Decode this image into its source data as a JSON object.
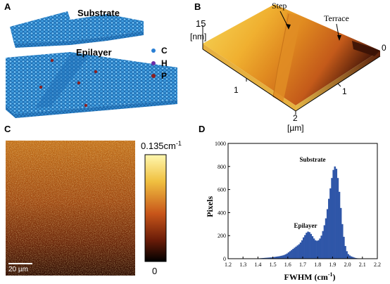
{
  "panels": {
    "a": {
      "label": "A",
      "substrate_label": "Substrate",
      "epilayer_label": "Epilayer",
      "legend": [
        {
          "symbol": "C",
          "color": "#2a7fd4"
        },
        {
          "symbol": "H",
          "color": "#6a2fa8"
        },
        {
          "symbol": "P",
          "color": "#8b2020"
        }
      ]
    },
    "b": {
      "label": "B",
      "step_label": "Step",
      "terrace_label": "Terrace",
      "z_max": "15",
      "z_unit": "[nm]",
      "x_ticks": [
        "1",
        "2"
      ],
      "y_ticks": [
        "0",
        "1"
      ],
      "xy_unit": "[µm]"
    },
    "c": {
      "label": "C",
      "colorbar_max": "0.135cm",
      "colorbar_max_sup": "-1",
      "colorbar_min": "0",
      "scale_bar": "20 µm"
    },
    "d": {
      "label": "D",
      "substrate_label": "Substrate",
      "epilayer_label": "Epilayer"
    }
  },
  "chart_data": {
    "type": "bar",
    "title": "",
    "xlabel": "FWHM (cm",
    "xlabel_sup": "-1",
    "xlabel_end": ")",
    "ylabel": "Pixels",
    "xlim": [
      1.2,
      2.2
    ],
    "ylim": [
      0,
      1000
    ],
    "x_ticks": [
      "1.2",
      "1.3",
      "1.4",
      "1.5",
      "1.6",
      "1.7",
      "1.8",
      "1.9",
      "2.0",
      "2.1",
      "2.2"
    ],
    "y_ticks": [
      "0",
      "200",
      "400",
      "600",
      "800",
      "1000"
    ],
    "bar_color": "#2f56a8",
    "bin_width": 0.01,
    "bins": [
      {
        "x": 1.4,
        "y": 2
      },
      {
        "x": 1.41,
        "y": 4
      },
      {
        "x": 1.42,
        "y": 5
      },
      {
        "x": 1.43,
        "y": 6
      },
      {
        "x": 1.44,
        "y": 7
      },
      {
        "x": 1.45,
        "y": 8
      },
      {
        "x": 1.46,
        "y": 9
      },
      {
        "x": 1.47,
        "y": 10
      },
      {
        "x": 1.48,
        "y": 11
      },
      {
        "x": 1.49,
        "y": 12
      },
      {
        "x": 1.5,
        "y": 14
      },
      {
        "x": 1.51,
        "y": 16
      },
      {
        "x": 1.52,
        "y": 18
      },
      {
        "x": 1.53,
        "y": 20
      },
      {
        "x": 1.54,
        "y": 22
      },
      {
        "x": 1.55,
        "y": 25
      },
      {
        "x": 1.56,
        "y": 28
      },
      {
        "x": 1.57,
        "y": 32
      },
      {
        "x": 1.58,
        "y": 38
      },
      {
        "x": 1.59,
        "y": 45
      },
      {
        "x": 1.6,
        "y": 55
      },
      {
        "x": 1.61,
        "y": 65
      },
      {
        "x": 1.62,
        "y": 75
      },
      {
        "x": 1.63,
        "y": 85
      },
      {
        "x": 1.64,
        "y": 95
      },
      {
        "x": 1.65,
        "y": 105
      },
      {
        "x": 1.66,
        "y": 115
      },
      {
        "x": 1.67,
        "y": 125
      },
      {
        "x": 1.68,
        "y": 140
      },
      {
        "x": 1.69,
        "y": 160
      },
      {
        "x": 1.7,
        "y": 185
      },
      {
        "x": 1.71,
        "y": 205
      },
      {
        "x": 1.72,
        "y": 225
      },
      {
        "x": 1.73,
        "y": 235
      },
      {
        "x": 1.74,
        "y": 230
      },
      {
        "x": 1.75,
        "y": 215
      },
      {
        "x": 1.76,
        "y": 195
      },
      {
        "x": 1.77,
        "y": 175
      },
      {
        "x": 1.78,
        "y": 160
      },
      {
        "x": 1.79,
        "y": 155
      },
      {
        "x": 1.8,
        "y": 160
      },
      {
        "x": 1.81,
        "y": 175
      },
      {
        "x": 1.82,
        "y": 200
      },
      {
        "x": 1.83,
        "y": 240
      },
      {
        "x": 1.84,
        "y": 290
      },
      {
        "x": 1.85,
        "y": 350
      },
      {
        "x": 1.86,
        "y": 430
      },
      {
        "x": 1.87,
        "y": 520
      },
      {
        "x": 1.88,
        "y": 610
      },
      {
        "x": 1.89,
        "y": 700
      },
      {
        "x": 1.9,
        "y": 770
      },
      {
        "x": 1.91,
        "y": 800
      },
      {
        "x": 1.92,
        "y": 780
      },
      {
        "x": 1.93,
        "y": 700
      },
      {
        "x": 1.94,
        "y": 580
      },
      {
        "x": 1.95,
        "y": 440
      },
      {
        "x": 1.96,
        "y": 300
      },
      {
        "x": 1.97,
        "y": 190
      },
      {
        "x": 1.98,
        "y": 110
      },
      {
        "x": 1.99,
        "y": 65
      },
      {
        "x": 2.0,
        "y": 40
      },
      {
        "x": 2.01,
        "y": 28
      },
      {
        "x": 2.02,
        "y": 20
      },
      {
        "x": 2.03,
        "y": 15
      },
      {
        "x": 2.04,
        "y": 10
      },
      {
        "x": 2.05,
        "y": 6
      },
      {
        "x": 2.06,
        "y": 4
      },
      {
        "x": 2.07,
        "y": 2
      }
    ]
  }
}
